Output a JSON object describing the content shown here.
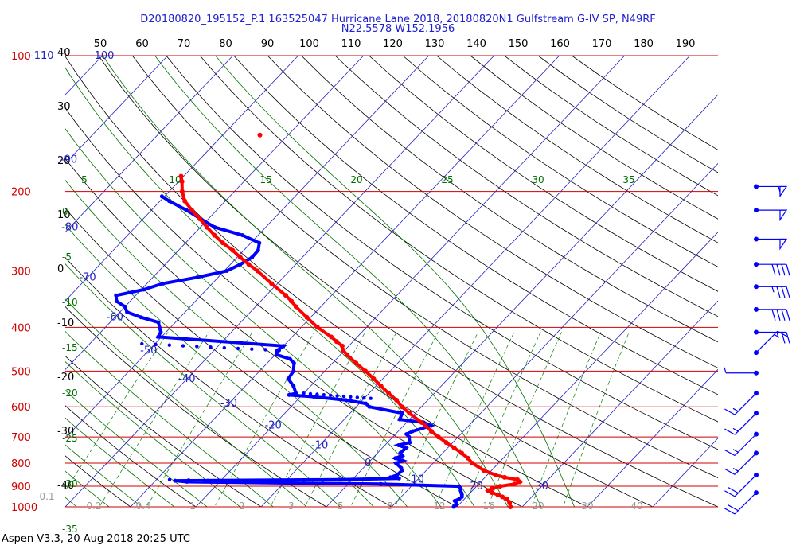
{
  "header": {
    "line1": "D20180820_195152_P.1 163525047 Hurricane Lane 2018, 20180820N1 Gulfstream G-IV SP, N49RF",
    "line2": "N22.5578 W152.1956"
  },
  "footer": {
    "text": "Aspen V3.3, 20 Aug 2018  20:25 UTC"
  },
  "colors": {
    "isobar": "#d00000",
    "temperature": "#ff0000",
    "dewpoint": "#0000ff",
    "isotherm": "#2020c0",
    "dry_adiabat": "#000000",
    "moist_adiabat": "#007000",
    "mixing_ratio": "#008000",
    "wind_barb": "#0000ff"
  },
  "chart_data": {
    "type": "skew-t",
    "title": "D20180820_195152_P.1 163525047 Hurricane Lane 2018, 20180820N1 Gulfstream G-IV SP, N49RF",
    "subtitle": "N22.5578 W152.1956",
    "pressure_levels_hpa": [
      {
        "label": "100",
        "value": 100,
        "sub": "-110"
      },
      {
        "label": "200",
        "value": 200
      },
      {
        "label": "300",
        "value": 300
      },
      {
        "label": "400",
        "value": 400
      },
      {
        "label": "500",
        "value": 500
      },
      {
        "label": "600",
        "value": 600
      },
      {
        "label": "700",
        "value": 700
      },
      {
        "label": "800",
        "value": 800
      },
      {
        "label": "900",
        "value": 900
      },
      {
        "label": "1000",
        "value": 1000
      }
    ],
    "top_fahrenheit_ticks": [
      "50",
      "60",
      "70",
      "80",
      "90",
      "100",
      "110",
      "120",
      "130",
      "140",
      "150",
      "160",
      "170",
      "180",
      "190"
    ],
    "left_celsius_ticks": [
      "40",
      "30",
      "20",
      "10",
      "0",
      "-10",
      "-20",
      "-30",
      "-40"
    ],
    "isotherm_labels": [
      "-100",
      "-90",
      "-80",
      "-70",
      "-60",
      "-50",
      "-40",
      "-30",
      "-20",
      "-10",
      "0",
      "10",
      "20",
      "30"
    ],
    "moist_adiabat_top_labels": [
      "5",
      "10",
      "15",
      "20",
      "25",
      "30",
      "35"
    ],
    "left_green_labels": [
      "0",
      "-5",
      "-10",
      "-15",
      "-20",
      "-25",
      "-30",
      "-35",
      "-40"
    ],
    "mixing_ratio_labels": [
      "0.1",
      "0.2",
      "0.4",
      "1",
      "2",
      "3",
      "5",
      "8",
      "12",
      "16",
      "20",
      "30",
      "40"
    ],
    "temperature_profile": [
      [
        1000,
        28.2
      ],
      [
        980,
        27.5
      ],
      [
        960,
        26.5
      ],
      [
        950,
        25.5
      ],
      [
        940,
        24.5
      ],
      [
        930,
        23.3
      ],
      [
        920,
        22.4
      ],
      [
        910,
        22.7
      ],
      [
        900,
        23.6
      ],
      [
        890,
        25.5
      ],
      [
        880,
        26.0
      ],
      [
        870,
        25.3
      ],
      [
        860,
        23.0
      ],
      [
        850,
        21.3
      ],
      [
        830,
        18.8
      ],
      [
        800,
        16.0
      ],
      [
        780,
        14.6
      ],
      [
        760,
        12.9
      ],
      [
        740,
        11.0
      ],
      [
        720,
        9.0
      ],
      [
        700,
        7.0
      ],
      [
        680,
        5.1
      ],
      [
        660,
        3.3
      ],
      [
        650,
        2.3
      ],
      [
        620,
        -0.9
      ],
      [
        600,
        -3.0
      ],
      [
        580,
        -4.8
      ],
      [
        560,
        -7.0
      ],
      [
        540,
        -9.2
      ],
      [
        520,
        -11.4
      ],
      [
        500,
        -13.8
      ],
      [
        480,
        -16.4
      ],
      [
        460,
        -19.0
      ],
      [
        450,
        -20.2
      ],
      [
        440,
        -21.0
      ],
      [
        430,
        -22.5
      ],
      [
        420,
        -24.0
      ],
      [
        400,
        -27.5
      ],
      [
        380,
        -30.6
      ],
      [
        360,
        -33.8
      ],
      [
        350,
        -35.3
      ],
      [
        340,
        -37.0
      ],
      [
        320,
        -40.9
      ],
      [
        300,
        -44.9
      ],
      [
        290,
        -47.2
      ],
      [
        280,
        -49.5
      ],
      [
        270,
        -51.7
      ],
      [
        260,
        -54.3
      ],
      [
        250,
        -56.7
      ],
      [
        240,
        -59.0
      ],
      [
        230,
        -61.3
      ],
      [
        220,
        -63.8
      ],
      [
        210,
        -66.2
      ],
      [
        200,
        -68.0
      ],
      [
        190,
        -69.5
      ],
      [
        185,
        -70.4
      ]
    ],
    "temperature_isolated_point": [
      150,
      -64.3
    ],
    "dewpoint_profile": [
      [
        1000,
        19.5
      ],
      [
        990,
        19.6
      ],
      [
        980,
        19.3
      ],
      [
        970,
        18.8
      ],
      [
        960,
        19.2
      ],
      [
        950,
        19.3
      ],
      [
        940,
        19.0
      ],
      [
        930,
        18.6
      ],
      [
        920,
        18.2
      ],
      [
        910,
        17.9
      ],
      [
        900,
        17.3
      ],
      [
        890,
        5.0
      ],
      [
        880,
        -25.0
      ],
      [
        875,
        -27.0
      ],
      [
        870,
        -2.0
      ],
      [
        865,
        7.0
      ],
      [
        860,
        5.5
      ],
      [
        850,
        6.2
      ],
      [
        830,
        6.3
      ],
      [
        820,
        5.8
      ],
      [
        800,
        4.3
      ],
      [
        790,
        5.0
      ],
      [
        780,
        3.5
      ],
      [
        770,
        4.2
      ],
      [
        760,
        3.5
      ],
      [
        740,
        3.6
      ],
      [
        730,
        2.1
      ],
      [
        720,
        3.4
      ],
      [
        700,
        2.5
      ],
      [
        690,
        1.7
      ],
      [
        680,
        2.2
      ],
      [
        670,
        3.3
      ],
      [
        660,
        4.2
      ],
      [
        650,
        2.6
      ],
      [
        640,
        -1.5
      ],
      [
        620,
        -2.0
      ],
      [
        600,
        -8.0
      ],
      [
        590,
        -9.0
      ],
      [
        580,
        -12.5
      ],
      [
        570,
        -18.0
      ],
      [
        565,
        -22.0
      ],
      [
        560,
        -21.2
      ],
      [
        540,
        -22.6
      ],
      [
        520,
        -24.5
      ],
      [
        500,
        -24.8
      ],
      [
        480,
        -25.9
      ],
      [
        470,
        -27.1
      ],
      [
        460,
        -29.8
      ],
      [
        450,
        -30.3
      ],
      [
        440,
        -30.0
      ],
      [
        420,
        -50.5
      ],
      [
        410,
        -50.8
      ],
      [
        400,
        -51.7
      ],
      [
        390,
        -52.6
      ],
      [
        380,
        -56.0
      ],
      [
        370,
        -58.9
      ],
      [
        360,
        -60.0
      ],
      [
        350,
        -62.1
      ],
      [
        340,
        -63.0
      ],
      [
        330,
        -59.6
      ],
      [
        320,
        -57.6
      ],
      [
        310,
        -53.2
      ],
      [
        300,
        -49.6
      ],
      [
        290,
        -48.5
      ],
      [
        280,
        -47.7
      ],
      [
        270,
        -47.8
      ],
      [
        260,
        -48.7
      ],
      [
        250,
        -52.4
      ],
      [
        240,
        -57.8
      ],
      [
        230,
        -61.2
      ],
      [
        220,
        -64.6
      ],
      [
        210,
        -68.6
      ],
      [
        205,
        -70.4
      ]
    ],
    "dewpoint_dotted_segments": [
      {
        "from": [
          890,
          2.0
        ],
        "to": [
          870,
          -28.0
        ]
      },
      {
        "from": [
          575,
          -9.0
        ],
        "to": [
          560,
          -20.0
        ]
      },
      {
        "from": [
          450,
          -30.0
        ],
        "to": [
          435,
          -52.0
        ]
      }
    ],
    "wind_barbs": [
      {
        "pressure": 195,
        "direction": "W",
        "speed_kt": 55
      },
      {
        "pressure": 220,
        "direction": "W",
        "speed_kt": 50
      },
      {
        "pressure": 255,
        "direction": "W",
        "speed_kt": 50
      },
      {
        "pressure": 290,
        "direction": "W",
        "speed_kt": 40
      },
      {
        "pressure": 325,
        "direction": "W",
        "speed_kt": 35
      },
      {
        "pressure": 365,
        "direction": "W",
        "speed_kt": 40
      },
      {
        "pressure": 410,
        "direction": "W",
        "speed_kt": 25
      },
      {
        "pressure": 455,
        "direction": "SW",
        "speed_kt": 15
      },
      {
        "pressure": 505,
        "direction": "E",
        "speed_kt": 5
      },
      {
        "pressure": 560,
        "direction": "NE",
        "speed_kt": 15
      },
      {
        "pressure": 620,
        "direction": "NE",
        "speed_kt": 15
      },
      {
        "pressure": 690,
        "direction": "NE",
        "speed_kt": 15
      },
      {
        "pressure": 760,
        "direction": "NE",
        "speed_kt": 15
      },
      {
        "pressure": 850,
        "direction": "NE",
        "speed_kt": 20
      },
      {
        "pressure": 930,
        "direction": "NE",
        "speed_kt": 20
      }
    ]
  }
}
